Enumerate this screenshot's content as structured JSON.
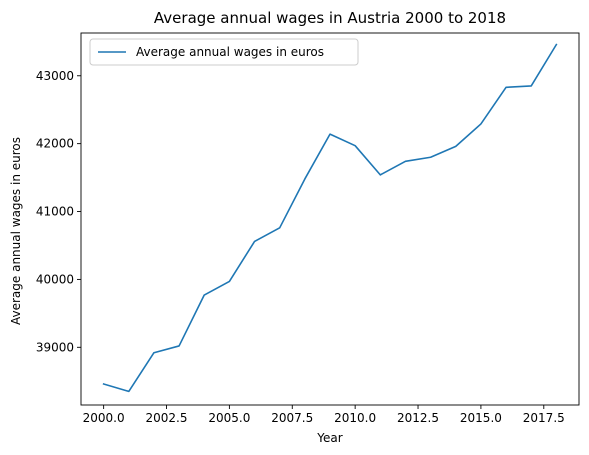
{
  "chart_data": {
    "type": "line",
    "title": "Average annual wages in Austria 2000 to 2018",
    "xlabel": "Year",
    "ylabel": "Average annual wages in euros",
    "xlim": [
      1999.1,
      2018.9
    ],
    "ylim": [
      38150,
      43630
    ],
    "xticks": [
      2000.0,
      2002.5,
      2005.0,
      2007.5,
      2010.0,
      2012.5,
      2015.0,
      2017.5
    ],
    "xtick_labels": [
      "2000.0",
      "2002.5",
      "2005.0",
      "2007.5",
      "2010.0",
      "2012.5",
      "2015.0",
      "2017.5"
    ],
    "yticks": [
      39000,
      40000,
      41000,
      42000,
      43000
    ],
    "ytick_labels": [
      "39000",
      "40000",
      "41000",
      "42000",
      "43000"
    ],
    "grid": false,
    "legend_position": "top-left",
    "series": [
      {
        "name": "Average annual wages in euros",
        "color": "#1f77b4",
        "x": [
          2000,
          2001,
          2002,
          2003,
          2004,
          2005,
          2006,
          2007,
          2008,
          2009,
          2010,
          2011,
          2012,
          2013,
          2014,
          2015,
          2016,
          2017,
          2018
        ],
        "y": [
          38460,
          38350,
          38920,
          39020,
          39770,
          39970,
          40560,
          40760,
          41480,
          42140,
          41970,
          41540,
          41740,
          41800,
          41960,
          42290,
          42830,
          42850,
          43460
        ]
      }
    ]
  }
}
